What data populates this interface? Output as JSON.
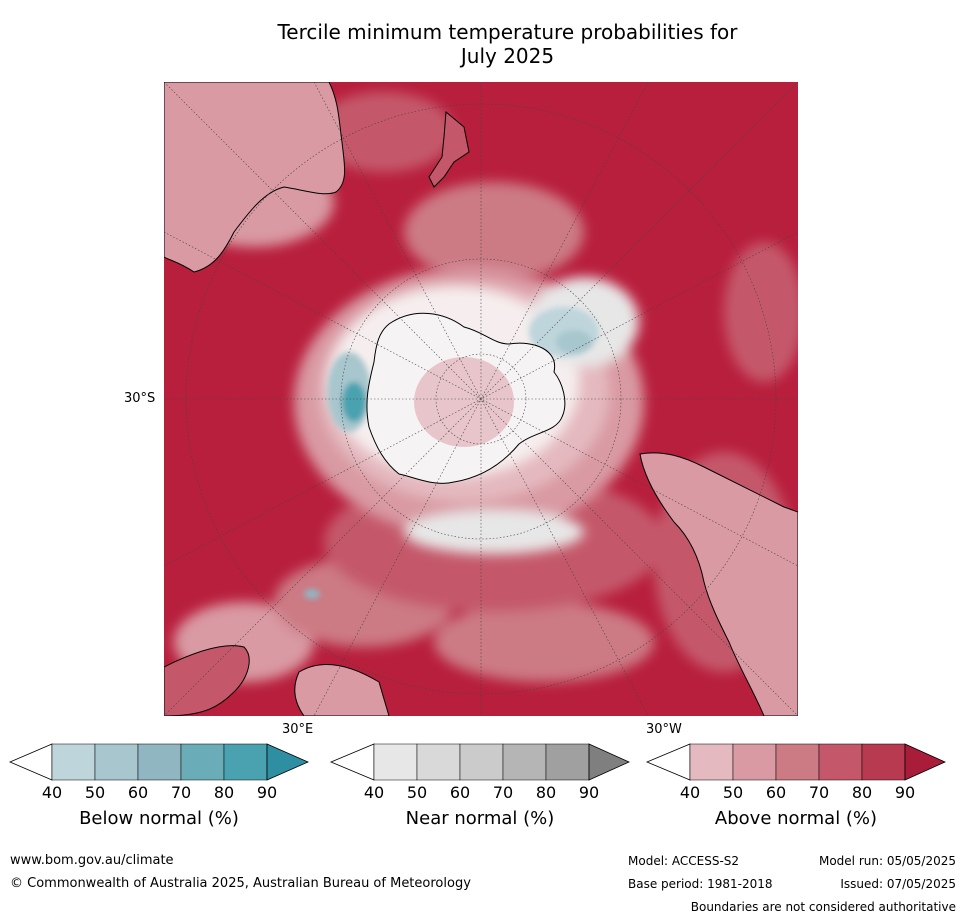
{
  "title_line1": "Tercile minimum temperature probabilities for",
  "title_line2": "July 2025",
  "map": {
    "projection": "south-polar-stereographic",
    "lat_label": "30°S",
    "lon_label_east": "30°E",
    "lon_label_west": "30°W"
  },
  "colorbars": [
    {
      "title": "Below normal (%)",
      "ticks": [
        "40",
        "50",
        "60",
        "70",
        "80",
        "90"
      ],
      "colors": [
        "#ffffff",
        "#bed5db",
        "#a8c6cd",
        "#8fb6c1",
        "#6aadb8",
        "#4aa2b0",
        "#2e8fa2"
      ]
    },
    {
      "title": "Near normal (%)",
      "ticks": [
        "40",
        "50",
        "60",
        "70",
        "80",
        "90"
      ],
      "colors": [
        "#ffffff",
        "#e7e7e7",
        "#d9d9d9",
        "#cbcbcb",
        "#b5b5b5",
        "#a0a0a0",
        "#7f7f7f"
      ]
    },
    {
      "title": "Above normal (%)",
      "ticks": [
        "40",
        "50",
        "60",
        "70",
        "80",
        "90"
      ],
      "colors": [
        "#ffffff",
        "#e4b9bf",
        "#d99aa3",
        "#cc7a84",
        "#c4586a",
        "#b83a50",
        "#a91d3a"
      ]
    }
  ],
  "footer": {
    "website": "www.bom.gov.au/climate",
    "copyright": "© Commonwealth of Australia 2025, Australian Bureau of Meteorology",
    "model": "Model: ACCESS-S2",
    "base_period": "Base period: 1981-2018",
    "model_run": "Model run: 05/05/2025",
    "issued": "Issued: 07/05/2025",
    "disclaimer": "Boundaries are not considered authoritative"
  }
}
